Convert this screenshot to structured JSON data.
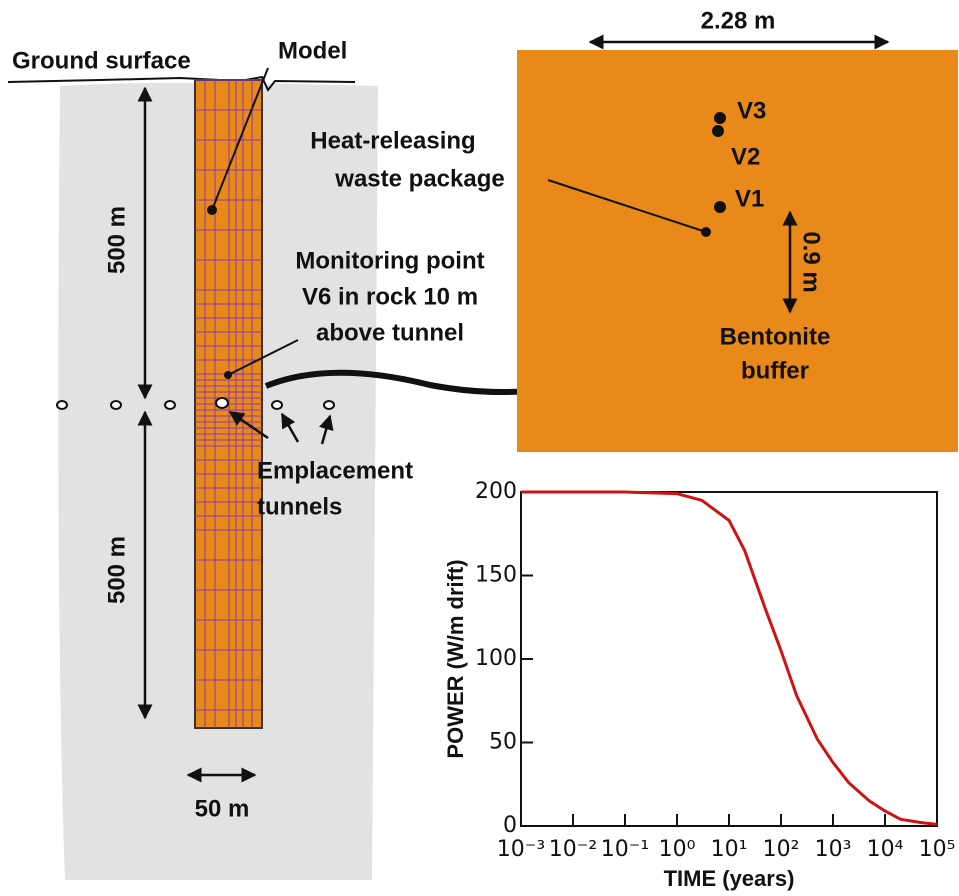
{
  "labels": {
    "ground_surface": "Ground surface",
    "model": "Model",
    "depth_above": "500 m",
    "depth_below": "500 m",
    "monitoring": [
      "Monitoring point",
      "V6 in rock 10 m",
      "above tunnel"
    ],
    "tunnels": [
      "Emplacement",
      "tunnels"
    ],
    "column_width": "50 m",
    "domain_width": "2.28 m",
    "v3": "V3",
    "v2": "V2",
    "v1": "V1",
    "package": [
      "Heat-releasing",
      "waste package"
    ],
    "buffer_thickness": "0.9 m",
    "buffer": [
      "Bentonite",
      "buffer"
    ]
  },
  "chart_data": {
    "type": "line",
    "xlabel": "TIME (years)",
    "ylabel": "POWER (W/m drift)",
    "x_log": true,
    "x": [
      0.001,
      0.01,
      0.1,
      1,
      3,
      10,
      20,
      50,
      100,
      200,
      500,
      1000,
      2000,
      5000,
      10000,
      20000,
      50000,
      100000
    ],
    "series": [
      {
        "name": "Power",
        "color": "#cc1414",
        "values": [
          200,
          200,
          200,
          199,
          195,
          183,
          165,
          130,
          105,
          78,
          52,
          38,
          26,
          15,
          9,
          4,
          2,
          1
        ]
      }
    ],
    "xlim": [
      0.001,
      100000
    ],
    "xticks": [
      {
        "value": 0.001,
        "label": "10⁻³"
      },
      {
        "value": 0.01,
        "label": "10⁻²"
      },
      {
        "value": 0.1,
        "label": "10⁻¹"
      },
      {
        "value": 1,
        "label": "10⁰"
      },
      {
        "value": 10,
        "label": "10¹"
      },
      {
        "value": 100,
        "label": "10²"
      },
      {
        "value": 1000,
        "label": "10³"
      },
      {
        "value": 10000,
        "label": "10⁴"
      },
      {
        "value": 100000,
        "label": "10⁵"
      }
    ],
    "ylim": [
      0,
      200
    ],
    "yticks": [
      0,
      50,
      100,
      150,
      200
    ]
  }
}
